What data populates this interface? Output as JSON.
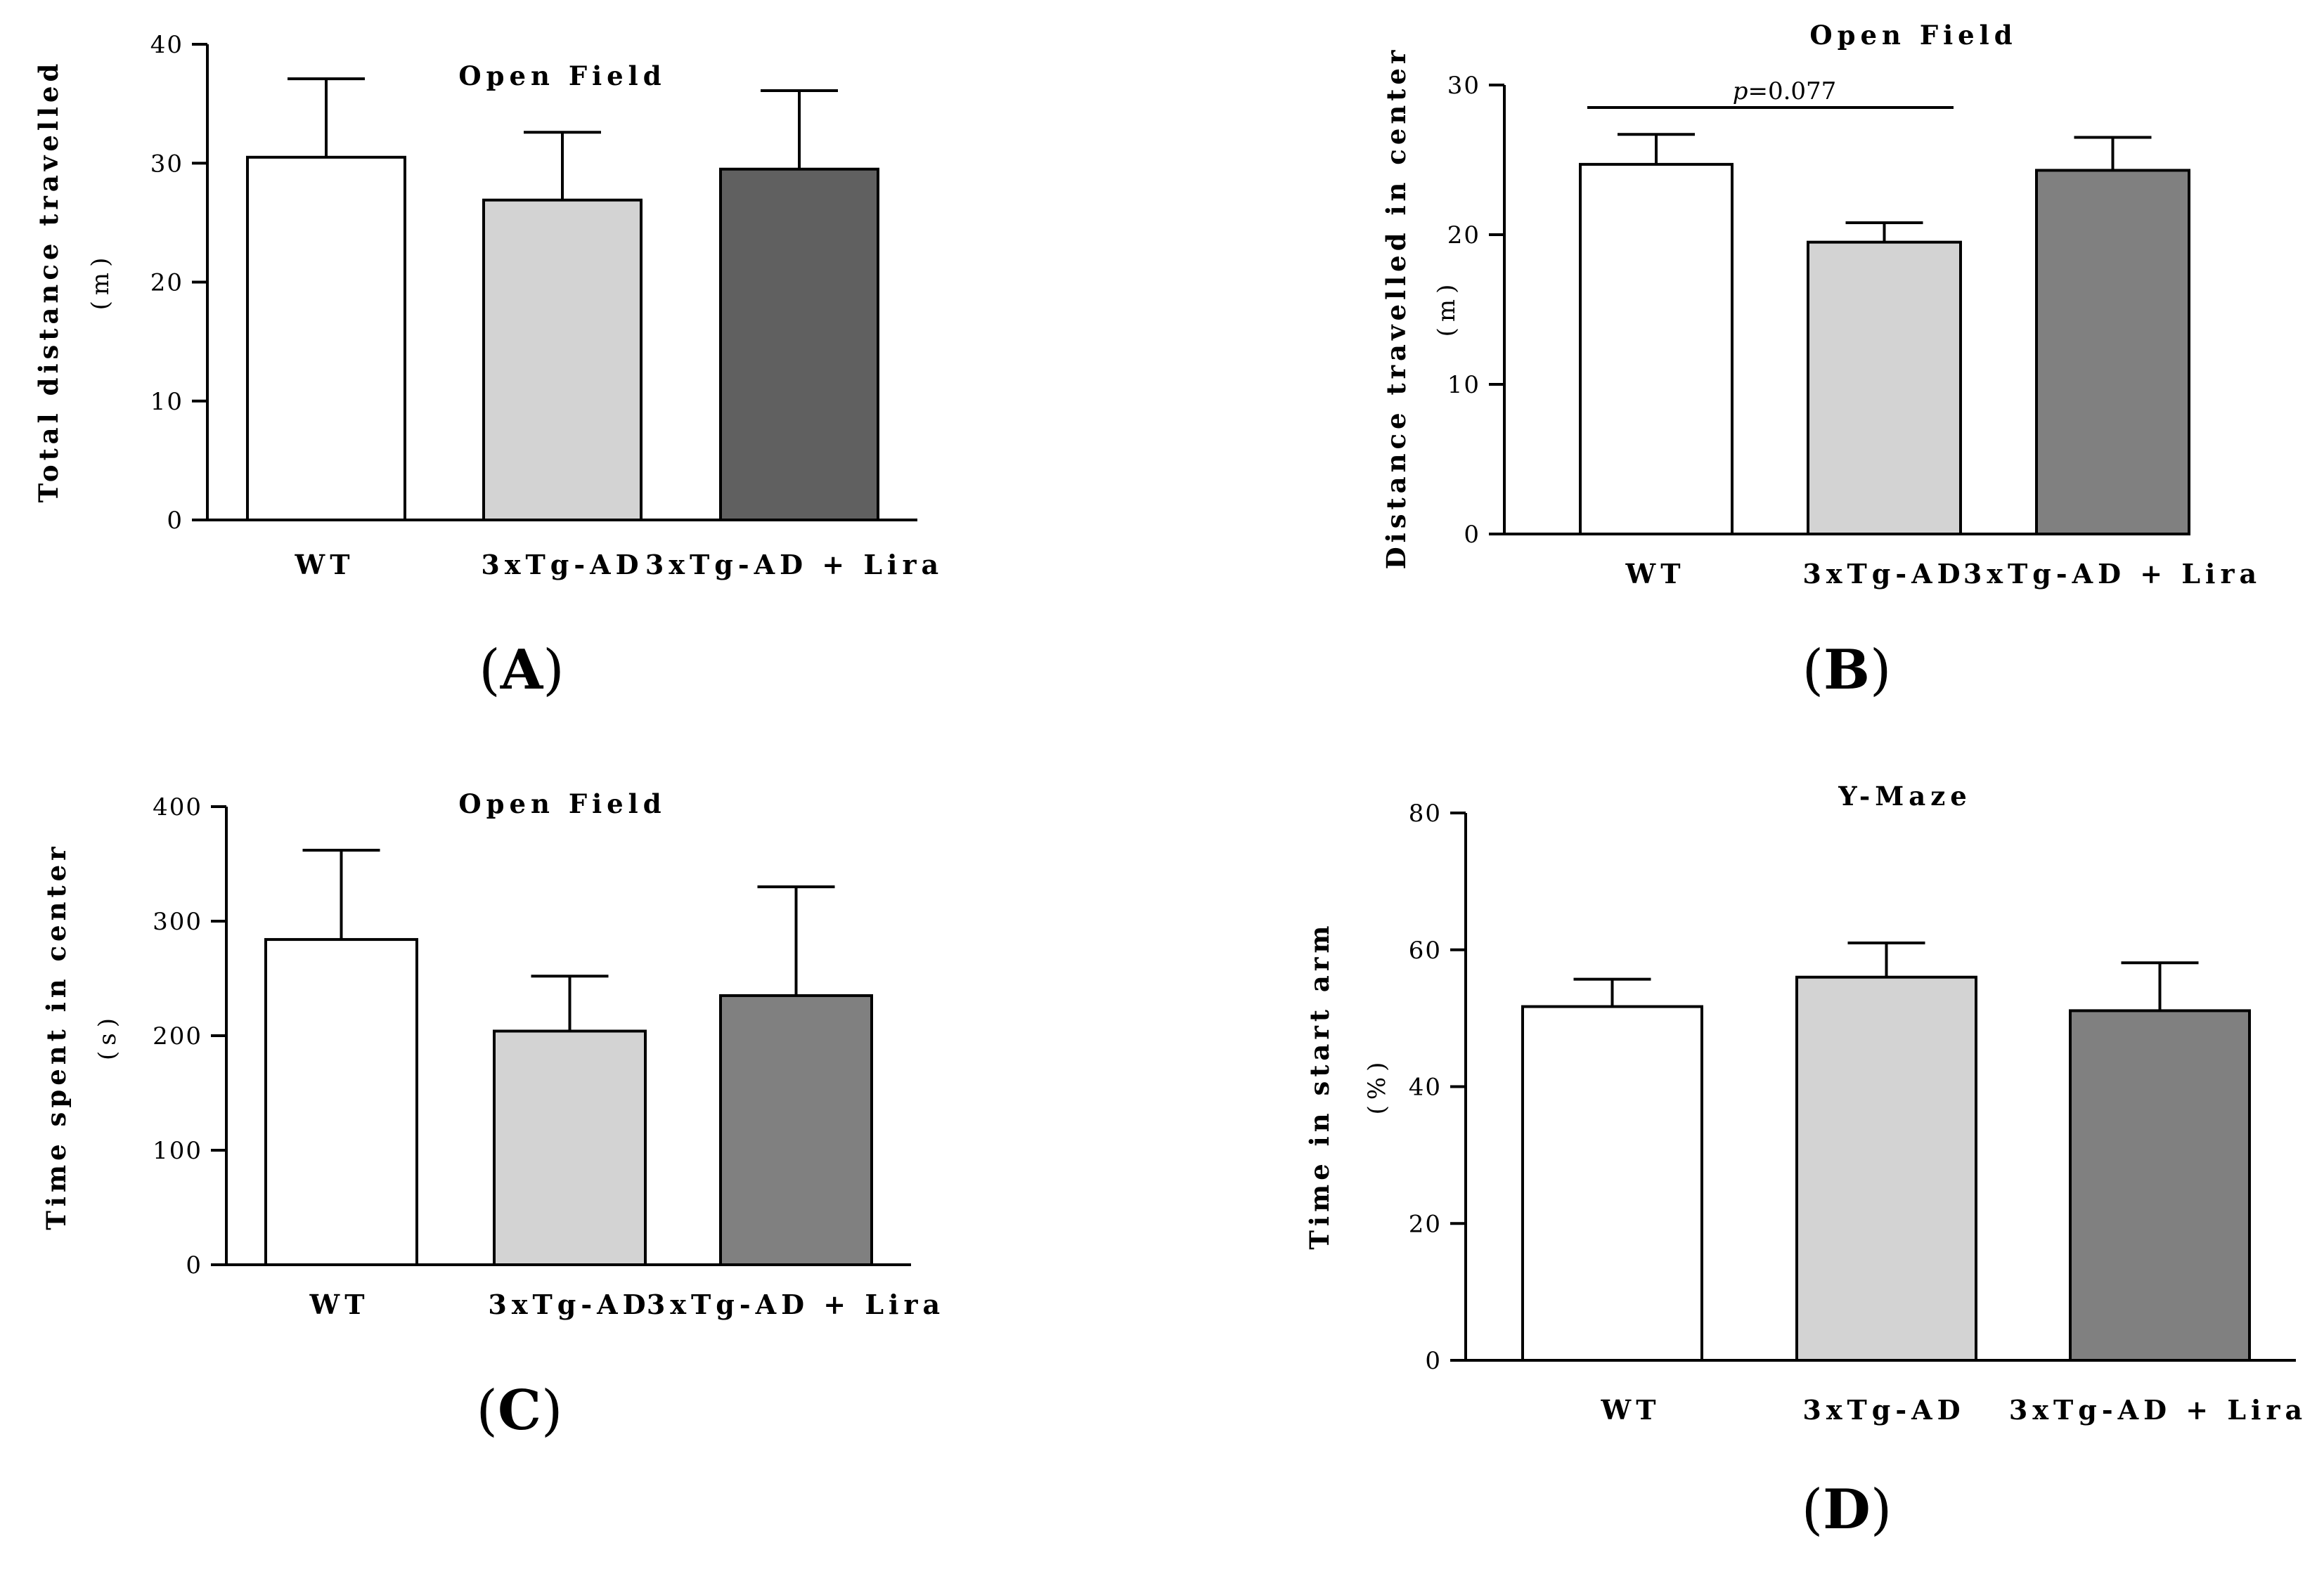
{
  "figure": {
    "colors": {
      "wt": "#ffffff",
      "tg": "#d3d3d3",
      "lira_a": "#606060",
      "lira": "#808080",
      "stroke": "#000000"
    }
  },
  "chart_data": [
    {
      "id": "A",
      "panel_label": "A",
      "type": "bar",
      "title": "Open Field",
      "ylabel": "Total distance travelled",
      "yunit": "(m)",
      "ylim": [
        0,
        40
      ],
      "yticks": [
        0,
        10,
        20,
        30,
        40
      ],
      "categories": [
        "WT",
        "3xTg-AD",
        "3xTg-AD + Lira"
      ],
      "values": [
        30.5,
        26.9,
        29.5
      ],
      "errors": [
        6.6,
        5.7,
        6.6
      ],
      "fill_keys": [
        "wt",
        "tg",
        "lira_a"
      ]
    },
    {
      "id": "B",
      "panel_label": "B",
      "type": "bar",
      "title": "Open Field",
      "ylabel": "Distance travelled in center",
      "yunit": "(m)",
      "ylim": [
        0,
        30
      ],
      "yticks": [
        0,
        10,
        20,
        30
      ],
      "categories": [
        "WT",
        "3xTg-AD",
        "3xTg-AD + Lira"
      ],
      "values": [
        24.7,
        19.5,
        24.3
      ],
      "errors": [
        2.0,
        1.3,
        2.2
      ],
      "fill_keys": [
        "wt",
        "tg",
        "lira"
      ],
      "annotation": {
        "p_symbol": "p",
        "p_text": "=0.077",
        "from": 0,
        "to": 1,
        "y": 28.5
      }
    },
    {
      "id": "C",
      "panel_label": "C",
      "type": "bar",
      "title": "Open Field",
      "ylabel": "Time spent in center",
      "yunit": "(s)",
      "ylim": [
        0,
        400
      ],
      "yticks": [
        0,
        100,
        200,
        300,
        400
      ],
      "categories": [
        "WT",
        "3xTg-AD",
        "3xTg-AD + Lira"
      ],
      "values": [
        284,
        204,
        235
      ],
      "errors": [
        78,
        48,
        95
      ],
      "fill_keys": [
        "wt",
        "tg",
        "lira"
      ]
    },
    {
      "id": "D",
      "panel_label": "D",
      "type": "bar",
      "title": "Y-Maze",
      "ylabel": "Time in start arm",
      "yunit": "(%)",
      "ylim": [
        0,
        80
      ],
      "yticks": [
        0,
        20,
        40,
        60,
        80
      ],
      "categories": [
        "WT",
        "3xTg-AD",
        "3xTg-AD + Lira"
      ],
      "values": [
        51.7,
        56.0,
        51.1
      ],
      "errors": [
        4.0,
        5.0,
        7.0
      ],
      "fill_keys": [
        "wt",
        "tg",
        "lira"
      ]
    }
  ]
}
